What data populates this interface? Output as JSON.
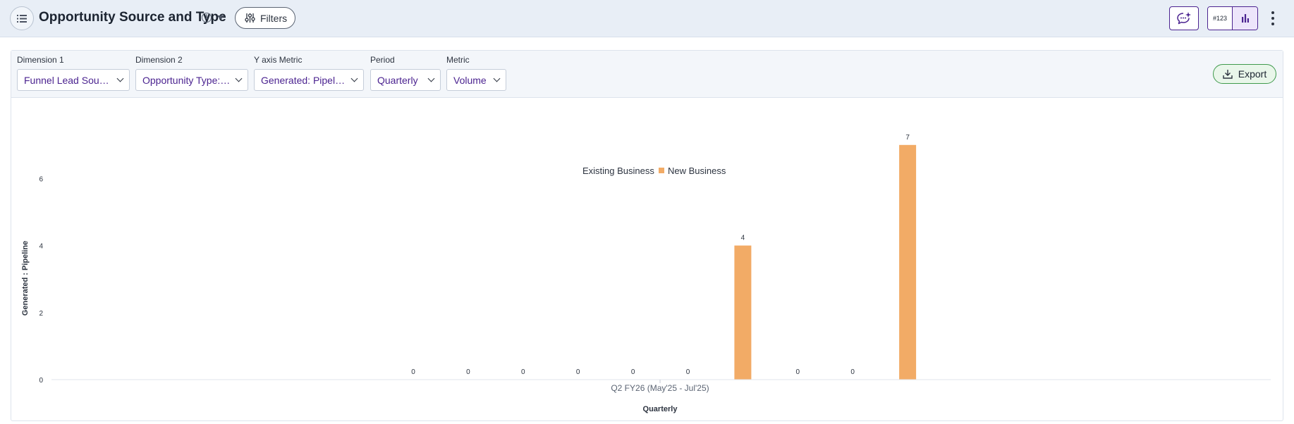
{
  "header": {
    "title": "Opportunity Source and Type",
    "filters_label": "Filters",
    "toggle_number_label": "#123"
  },
  "controls": [
    {
      "label": "Dimension 1",
      "value": "Funnel Lead Source..."
    },
    {
      "label": "Dimension 2",
      "value": "Opportunity Type: All"
    },
    {
      "label": "Y axis Metric",
      "value": "Generated: Pipelin..."
    },
    {
      "label": "Period",
      "value": "Quarterly"
    },
    {
      "label": "Metric",
      "value": "Volume"
    }
  ],
  "export_label": "Export",
  "colors": {
    "accent": "#4b2390",
    "bar": "#f2ab66",
    "export_border": "#3f9a4c"
  },
  "chart_data": {
    "type": "bar",
    "xlabel": "Quarterly",
    "ylabel": "Generated : Pipeline",
    "category": "Q2 FY26 (May'25 - Jul'25)",
    "ylim": [
      0,
      7
    ],
    "yticks": [
      0,
      2,
      4,
      6
    ],
    "legend": [
      {
        "name": "Existing Business",
        "marker": false
      },
      {
        "name": "New Business",
        "marker": true,
        "color": "#f2ab66"
      }
    ],
    "legend_position": "top-center",
    "grid": false,
    "values": [
      0,
      0,
      0,
      0,
      0,
      0,
      4,
      0,
      0,
      7
    ]
  }
}
